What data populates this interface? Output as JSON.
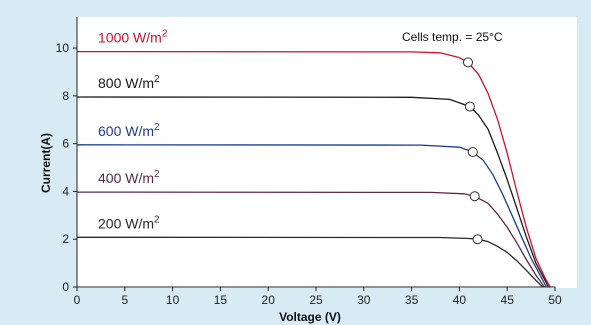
{
  "chart_data": {
    "type": "line",
    "title": "",
    "xlabel": "Voltage  (V)",
    "ylabel": "Current(A)",
    "xlim": [
      0,
      50
    ],
    "ylim": [
      0,
      11.3
    ],
    "xticks": [
      0,
      5,
      10,
      15,
      20,
      25,
      30,
      35,
      40,
      45,
      50
    ],
    "yticks": [
      0,
      2,
      4,
      6,
      8,
      10
    ],
    "grid": false,
    "annotation": "Cells temp. = 25°C",
    "series": [
      {
        "name": "1000 W/m",
        "sup": "2",
        "color": "#d0112b",
        "isc": 9.85,
        "voc": 49.5,
        "mpp": [
          40.9,
          9.4
        ],
        "points": [
          [
            0,
            9.85
          ],
          [
            35,
            9.84
          ],
          [
            38,
            9.8
          ],
          [
            40,
            9.6
          ],
          [
            40.9,
            9.4
          ],
          [
            42,
            8.9
          ],
          [
            43,
            8.1
          ],
          [
            44,
            7.0
          ],
          [
            45,
            5.6
          ],
          [
            46,
            4.0
          ],
          [
            47,
            2.5
          ],
          [
            48,
            1.2
          ],
          [
            49,
            0.35
          ],
          [
            49.5,
            0
          ]
        ]
      },
      {
        "name": "800 W/m",
        "sup": "2",
        "color": "#1a1a1a",
        "isc": 7.95,
        "voc": 49.3,
        "mpp": [
          41.1,
          7.55
        ],
        "points": [
          [
            0,
            7.95
          ],
          [
            35,
            7.94
          ],
          [
            39,
            7.85
          ],
          [
            41.1,
            7.55
          ],
          [
            42,
            7.2
          ],
          [
            43,
            6.6
          ],
          [
            44,
            5.6
          ],
          [
            45,
            4.5
          ],
          [
            46,
            3.3
          ],
          [
            47,
            2.1
          ],
          [
            48,
            1.0
          ],
          [
            49,
            0.25
          ],
          [
            49.3,
            0
          ]
        ]
      },
      {
        "name": "600 W/m",
        "sup": "2",
        "color": "#1d3d8f",
        "isc": 5.95,
        "voc": 49.1,
        "mpp": [
          41.4,
          5.65
        ],
        "points": [
          [
            0,
            5.95
          ],
          [
            36,
            5.94
          ],
          [
            40,
            5.85
          ],
          [
            41.4,
            5.65
          ],
          [
            42.5,
            5.3
          ],
          [
            43.5,
            4.7
          ],
          [
            44.5,
            3.9
          ],
          [
            45.5,
            3.0
          ],
          [
            46.5,
            2.1
          ],
          [
            47.5,
            1.2
          ],
          [
            48.5,
            0.45
          ],
          [
            49.1,
            0
          ]
        ]
      },
      {
        "name": "400 W/m",
        "sup": "2",
        "color": "#5a2a4a",
        "isc": 3.97,
        "voc": 48.9,
        "mpp": [
          41.6,
          3.8
        ],
        "points": [
          [
            0,
            3.97
          ],
          [
            37,
            3.96
          ],
          [
            40.5,
            3.9
          ],
          [
            41.6,
            3.8
          ],
          [
            43,
            3.5
          ],
          [
            44,
            3.05
          ],
          [
            45,
            2.5
          ],
          [
            46,
            1.85
          ],
          [
            47,
            1.15
          ],
          [
            48,
            0.5
          ],
          [
            48.9,
            0
          ]
        ]
      },
      {
        "name": "200 W/m",
        "sup": "2",
        "color": "#2a2a2a",
        "isc": 2.08,
        "voc": 48.7,
        "mpp": [
          41.9,
          2.0
        ],
        "points": [
          [
            0,
            2.08
          ],
          [
            38,
            2.07
          ],
          [
            41,
            2.03
          ],
          [
            41.9,
            2.0
          ],
          [
            43,
            1.9
          ],
          [
            44,
            1.7
          ],
          [
            45,
            1.45
          ],
          [
            46,
            1.1
          ],
          [
            47,
            0.7
          ],
          [
            48,
            0.28
          ],
          [
            48.7,
            0
          ]
        ]
      }
    ]
  }
}
